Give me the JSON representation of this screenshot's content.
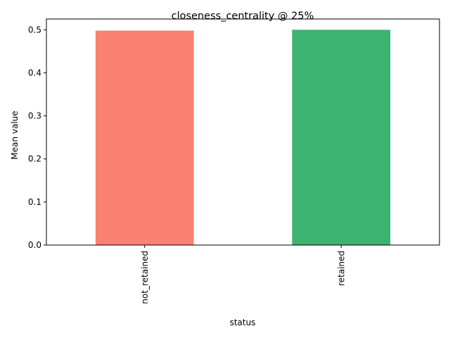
{
  "chart_data": {
    "type": "bar",
    "title": "closeness_centrality @ 25%",
    "xlabel": "status",
    "ylabel": "Mean value",
    "categories": [
      "not_retained",
      "retained"
    ],
    "values": [
      0.498,
      0.5
    ],
    "colors": [
      "#fa8072",
      "#3cb371"
    ],
    "ylim": [
      0,
      0.525
    ],
    "yticks": [
      0.0,
      0.1,
      0.2,
      0.3,
      0.4,
      0.5
    ],
    "ytick_labels": [
      "0.0",
      "0.1",
      "0.2",
      "0.3",
      "0.4",
      "0.5"
    ],
    "grid": false,
    "legend": null
  }
}
